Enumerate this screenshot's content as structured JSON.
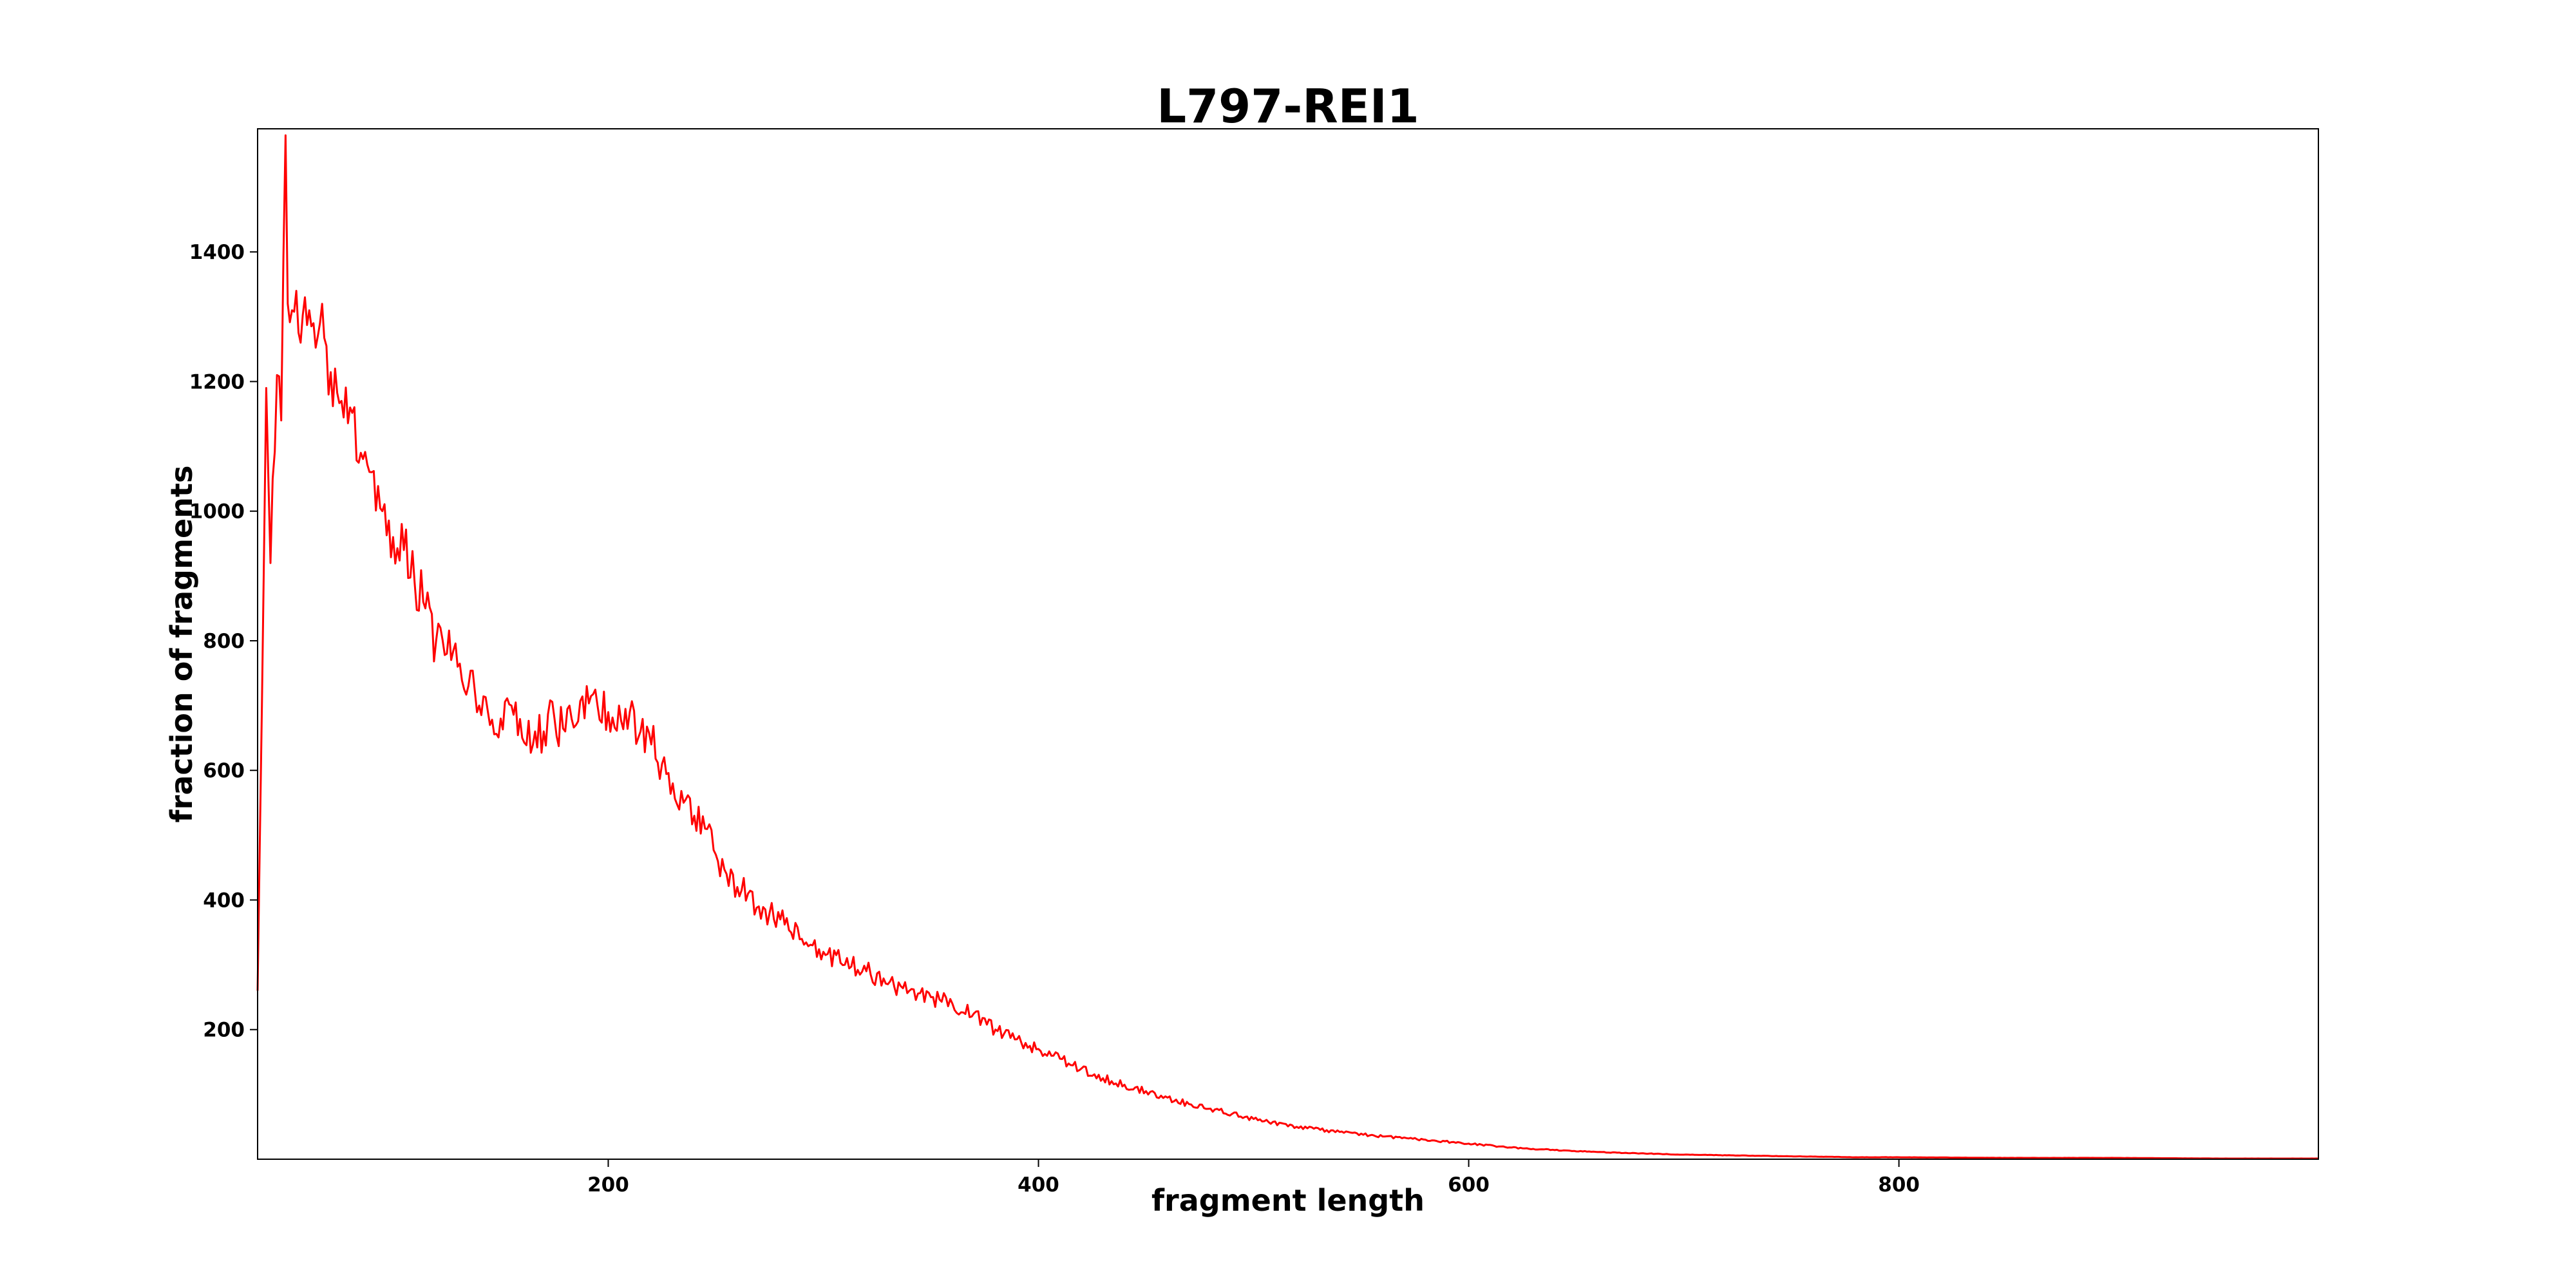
{
  "chart_data": {
    "type": "line",
    "title": "L797-REI1",
    "xlabel": "fragment length",
    "ylabel": "fraction of fragments",
    "xlim": [
      37,
      995
    ],
    "ylim": [
      0,
      1590
    ],
    "xticks": [
      200,
      400,
      600,
      800
    ],
    "yticks": [
      200,
      400,
      600,
      800,
      1000,
      1200,
      1400
    ],
    "grid": false,
    "legend": false,
    "colors": {
      "line": "#ff0000",
      "axes": "#000000",
      "background": "#ffffff"
    },
    "series": [
      {
        "x": [
          37,
          39,
          41,
          43,
          44,
          46,
          48,
          50,
          51,
          53,
          55,
          57,
          59,
          61,
          63,
          65,
          67,
          70,
          73,
          76,
          80,
          85,
          90,
          95,
          100,
          105,
          110,
          115,
          120,
          125,
          130,
          135,
          140,
          145,
          150,
          155,
          160,
          165,
          170,
          175,
          180,
          185,
          190,
          195,
          200,
          205,
          210,
          215,
          220,
          225,
          230,
          235,
          240,
          245,
          250,
          255,
          260,
          265,
          270,
          275,
          280,
          285,
          290,
          295,
          300,
          310,
          320,
          330,
          340,
          350,
          360,
          370,
          380,
          390,
          400,
          410,
          420,
          430,
          440,
          450,
          460,
          470,
          480,
          490,
          500,
          520,
          540,
          560,
          580,
          600,
          620,
          640,
          660,
          680,
          700,
          720,
          740,
          760,
          780,
          800,
          850,
          900,
          950,
          995
        ],
        "values": [
          260,
          700,
          1190,
          920,
          1050,
          1210,
          1140,
          1580,
          1320,
          1310,
          1340,
          1260,
          1330,
          1310,
          1290,
          1270,
          1320,
          1180,
          1220,
          1170,
          1160,
          1090,
          1060,
          1000,
          960,
          940,
          890,
          850,
          800,
          780,
          760,
          730,
          700,
          670,
          680,
          700,
          650,
          640,
          660,
          680,
          660,
          670,
          730,
          700,
          690,
          700,
          690,
          660,
          640,
          610,
          580,
          550,
          530,
          510,
          470,
          440,
          420,
          410,
          390,
          380,
          370,
          350,
          340,
          330,
          320,
          300,
          290,
          270,
          260,
          250,
          240,
          225,
          200,
          185,
          170,
          155,
          140,
          125,
          115,
          105,
          95,
          85,
          78,
          70,
          62,
          50,
          42,
          35,
          30,
          24,
          18,
          14,
          11,
          9,
          7,
          6,
          5,
          4,
          3,
          3,
          2,
          2,
          1,
          1
        ]
      }
    ]
  }
}
